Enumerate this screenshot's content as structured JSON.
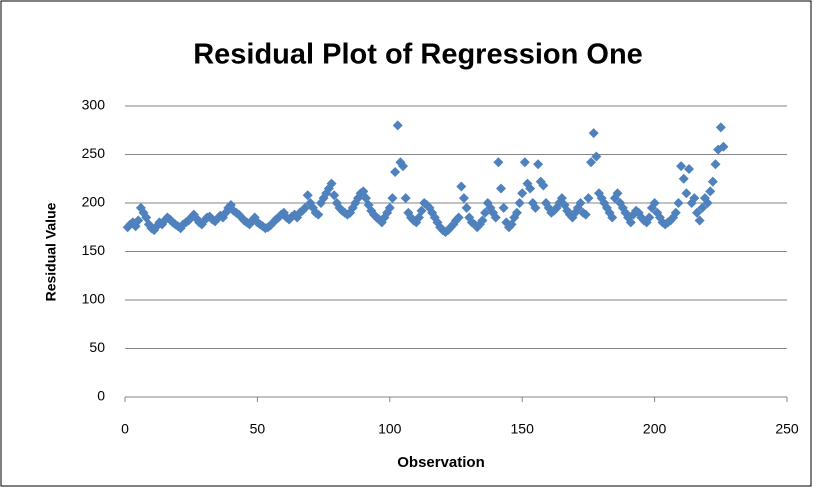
{
  "chart_data": {
    "type": "scatter",
    "title": "Residual Plot of Regression One",
    "x_label": "Observation",
    "y_label": "Residual Value",
    "color": "#4f81bd",
    "grid": true,
    "xlim": [
      0,
      250
    ],
    "xticks": [
      0,
      50,
      100,
      150,
      200,
      250
    ],
    "ylim": [
      0,
      300
    ],
    "yticks": [
      0,
      50,
      100,
      150,
      200,
      250,
      300
    ],
    "x": [
      1,
      2,
      3,
      4,
      5,
      6,
      7,
      8,
      9,
      10,
      11,
      12,
      13,
      14,
      15,
      16,
      17,
      18,
      19,
      20,
      21,
      22,
      23,
      24,
      25,
      26,
      27,
      28,
      29,
      30,
      31,
      32,
      33,
      34,
      35,
      36,
      37,
      38,
      39,
      40,
      41,
      42,
      43,
      44,
      45,
      46,
      47,
      48,
      49,
      50,
      51,
      52,
      53,
      54,
      55,
      56,
      57,
      58,
      59,
      60,
      61,
      62,
      63,
      64,
      65,
      66,
      67,
      68,
      69,
      70,
      71,
      72,
      73,
      74,
      75,
      76,
      77,
      78,
      79,
      80,
      81,
      82,
      83,
      84,
      85,
      86,
      87,
      88,
      89,
      90,
      91,
      92,
      93,
      94,
      95,
      96,
      97,
      98,
      99,
      100,
      101,
      102,
      103,
      104,
      105,
      106,
      107,
      108,
      109,
      110,
      111,
      112,
      113,
      114,
      115,
      116,
      117,
      118,
      119,
      120,
      121,
      122,
      123,
      124,
      125,
      126,
      127,
      128,
      129,
      130,
      131,
      132,
      133,
      134,
      135,
      136,
      137,
      138,
      139,
      140,
      141,
      142,
      143,
      144,
      145,
      146,
      147,
      148,
      149,
      150,
      151,
      152,
      153,
      154,
      155,
      156,
      157,
      158,
      159,
      160,
      161,
      162,
      163,
      164,
      165,
      166,
      167,
      168,
      169,
      170,
      171,
      172,
      173,
      174,
      175,
      176,
      177,
      178,
      179,
      180,
      181,
      182,
      183,
      184,
      185,
      186,
      187,
      188,
      189,
      190,
      191,
      192,
      193,
      194,
      195,
      196,
      197,
      198,
      199,
      200,
      201,
      202,
      203,
      204,
      205,
      206,
      207,
      208,
      209,
      210,
      211,
      212,
      213,
      214,
      215,
      216,
      217,
      218,
      219,
      220,
      221,
      222,
      223,
      224,
      225,
      226
    ],
    "values": [
      175,
      178,
      180,
      176,
      182,
      195,
      190,
      185,
      178,
      174,
      172,
      176,
      180,
      178,
      182,
      185,
      183,
      180,
      178,
      176,
      174,
      178,
      180,
      182,
      185,
      188,
      184,
      180,
      178,
      182,
      185,
      186,
      183,
      181,
      184,
      187,
      185,
      190,
      195,
      198,
      192,
      190,
      188,
      185,
      182,
      180,
      178,
      182,
      185,
      180,
      178,
      176,
      174,
      175,
      177,
      180,
      183,
      185,
      188,
      190,
      185,
      183,
      186,
      188,
      185,
      190,
      192,
      195,
      208,
      200,
      195,
      190,
      188,
      200,
      205,
      210,
      215,
      220,
      208,
      200,
      195,
      192,
      190,
      188,
      190,
      195,
      200,
      205,
      210,
      212,
      205,
      198,
      192,
      188,
      185,
      183,
      180,
      185,
      190,
      195,
      205,
      232,
      280,
      242,
      238,
      205,
      190,
      185,
      182,
      180,
      185,
      192,
      200,
      198,
      195,
      190,
      185,
      180,
      175,
      172,
      170,
      172,
      175,
      178,
      182,
      185,
      217,
      205,
      195,
      185,
      180,
      178,
      175,
      178,
      182,
      190,
      200,
      195,
      190,
      185,
      242,
      215,
      195,
      180,
      175,
      178,
      185,
      190,
      200,
      210,
      242,
      220,
      215,
      200,
      195,
      240,
      222,
      218,
      200,
      195,
      190,
      192,
      195,
      200,
      205,
      198,
      192,
      188,
      185,
      190,
      195,
      200,
      190,
      188,
      205,
      242,
      272,
      248,
      210,
      205,
      200,
      195,
      190,
      185,
      205,
      210,
      200,
      195,
      190,
      185,
      180,
      188,
      192,
      190,
      185,
      182,
      180,
      185,
      195,
      200,
      190,
      185,
      180,
      178,
      180,
      182,
      185,
      190,
      200,
      238,
      225,
      210,
      235,
      200,
      205,
      190,
      182,
      195,
      205,
      200,
      212,
      222,
      240,
      255,
      278,
      258
    ]
  }
}
